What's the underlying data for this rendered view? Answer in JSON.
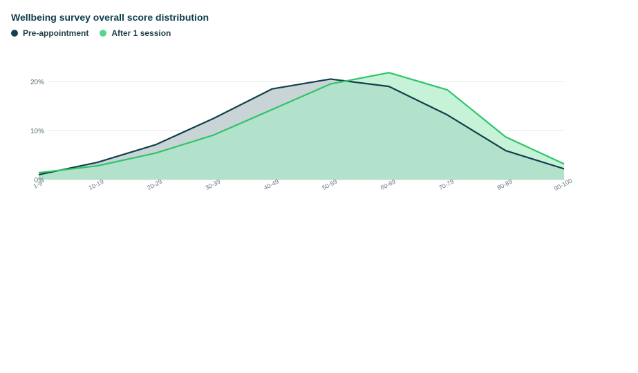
{
  "chart_data": {
    "type": "area",
    "title": "Wellbeing survey overall score distribution",
    "xlabel": "",
    "ylabel": "",
    "categories": [
      "1-9",
      "10-19",
      "20-29",
      "30-39",
      "40-49",
      "50-59",
      "60-69",
      "70-79",
      "80-89",
      "90-100"
    ],
    "ylim": [
      0,
      0.2
    ],
    "yticks": [
      {
        "value": 0,
        "label": "0%"
      },
      {
        "value": 0.1,
        "label": "10%"
      },
      {
        "value": 0.2,
        "label": "20%"
      }
    ],
    "grid": true,
    "legend_position": "top-left",
    "series": [
      {
        "name": "Pre-appointment",
        "color": "#123f4a",
        "fill": "#c9d4d7",
        "values": [
          0.01,
          0.035,
          0.071,
          0.125,
          0.185,
          0.205,
          0.19,
          0.132,
          0.059,
          0.022
        ]
      },
      {
        "name": "After 1 session",
        "color": "#2ec567",
        "fill": "#c6f2d7",
        "legend_color": "#4fd98a",
        "values": [
          0.014,
          0.028,
          0.054,
          0.091,
          0.143,
          0.195,
          0.218,
          0.183,
          0.087,
          0.032
        ]
      }
    ],
    "overlap_fill": "#b2e1cc"
  }
}
